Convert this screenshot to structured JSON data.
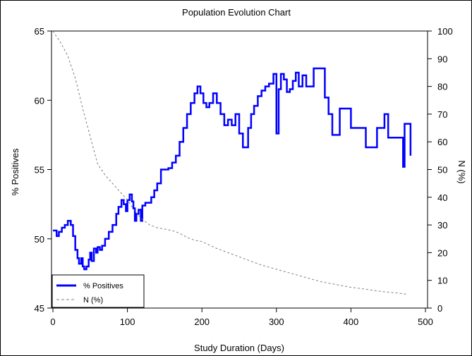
{
  "chart_data": {
    "type": "line",
    "title": "Population Evolution Chart",
    "xlabel": "Study Duration (Days)",
    "ylabel_left": "% Positives",
    "ylabel_right": "N (%)",
    "xlim": [
      0,
      500
    ],
    "ylim_left": [
      45,
      65
    ],
    "ylim_right": [
      0,
      100
    ],
    "x_ticks": [
      0,
      100,
      200,
      300,
      400,
      500
    ],
    "y_left_ticks": [
      45,
      50,
      55,
      60,
      65
    ],
    "y_right_ticks": [
      0,
      10,
      20,
      30,
      40,
      50,
      60,
      70,
      80,
      90,
      100
    ],
    "legend_position": "bottom-left",
    "grid": false,
    "series": [
      {
        "name": "% Positives",
        "axis": "left",
        "color": "#0000ff",
        "style": "step",
        "x": [
          0,
          5,
          8,
          12,
          16,
          20,
          24,
          27,
          30,
          33,
          35,
          38,
          40,
          42,
          45,
          48,
          50,
          52,
          55,
          58,
          60,
          63,
          66,
          70,
          75,
          80,
          85,
          88,
          92,
          95,
          98,
          100,
          103,
          106,
          108,
          110,
          112,
          115,
          118,
          120,
          124,
          128,
          132,
          136,
          140,
          145,
          150,
          155,
          160,
          165,
          170,
          175,
          180,
          185,
          190,
          194,
          198,
          202,
          206,
          210,
          215,
          220,
          225,
          230,
          235,
          240,
          245,
          250,
          255,
          258,
          262,
          266,
          270,
          275,
          280,
          285,
          290,
          296,
          300,
          303,
          306,
          310,
          314,
          318,
          322,
          326,
          330,
          335,
          340,
          350,
          360,
          365,
          370,
          375,
          380,
          385,
          390,
          395,
          400,
          410,
          420,
          428,
          435,
          445,
          450,
          460,
          468,
          470,
          472,
          476,
          480
        ],
        "y": [
          50.6,
          50.2,
          50.5,
          50.8,
          51.0,
          51.3,
          51.0,
          50.2,
          49.2,
          48.6,
          48.2,
          48.6,
          48.0,
          47.8,
          48.0,
          48.5,
          49.0,
          48.4,
          49.3,
          49.0,
          49.4,
          49.2,
          49.5,
          50.0,
          50.5,
          51.0,
          51.8,
          52.3,
          52.8,
          52.5,
          52.0,
          52.8,
          53.2,
          52.7,
          52.2,
          51.3,
          51.8,
          52.1,
          51.3,
          52.4,
          52.6,
          52.6,
          53.0,
          53.5,
          54.0,
          55.0,
          55.0,
          55.1,
          55.5,
          56.0,
          57.0,
          58.0,
          59.0,
          59.8,
          60.5,
          61.0,
          60.5,
          59.8,
          59.5,
          59.8,
          60.5,
          59.8,
          59.0,
          58.2,
          58.6,
          58.2,
          59.0,
          57.6,
          56.6,
          56.6,
          58.0,
          59.0,
          59.6,
          60.3,
          60.7,
          61.0,
          61.2,
          61.9,
          57.6,
          60.8,
          61.9,
          61.5,
          60.6,
          60.8,
          61.4,
          62.0,
          61.0,
          61.8,
          61.0,
          62.3,
          62.3,
          60.2,
          59.0,
          57.5,
          57.5,
          59.4,
          59.4,
          59.4,
          58.0,
          58.0,
          56.6,
          56.6,
          58.0,
          59.0,
          57.3,
          57.3,
          57.3,
          55.2,
          58.3,
          58.3,
          56.0
        ]
      },
      {
        "name": "N (%)",
        "axis": "right",
        "color": "#808080",
        "style": "dashed",
        "x": [
          0,
          10,
          20,
          30,
          40,
          50,
          60,
          70,
          80,
          90,
          100,
          110,
          120,
          130,
          140,
          150,
          160,
          170,
          180,
          190,
          200,
          220,
          240,
          260,
          280,
          300,
          320,
          340,
          360,
          380,
          400,
          420,
          440,
          460,
          475
        ],
        "y": [
          100,
          96,
          91,
          83,
          72,
          62,
          52,
          48,
          45,
          42,
          39,
          35,
          32,
          30,
          29,
          28.5,
          28,
          27,
          25.5,
          24.5,
          24,
          21.5,
          19.5,
          17.5,
          15.5,
          14,
          12.5,
          11,
          9.5,
          8.5,
          7.5,
          6.8,
          6,
          5.5,
          5
        ]
      }
    ]
  }
}
